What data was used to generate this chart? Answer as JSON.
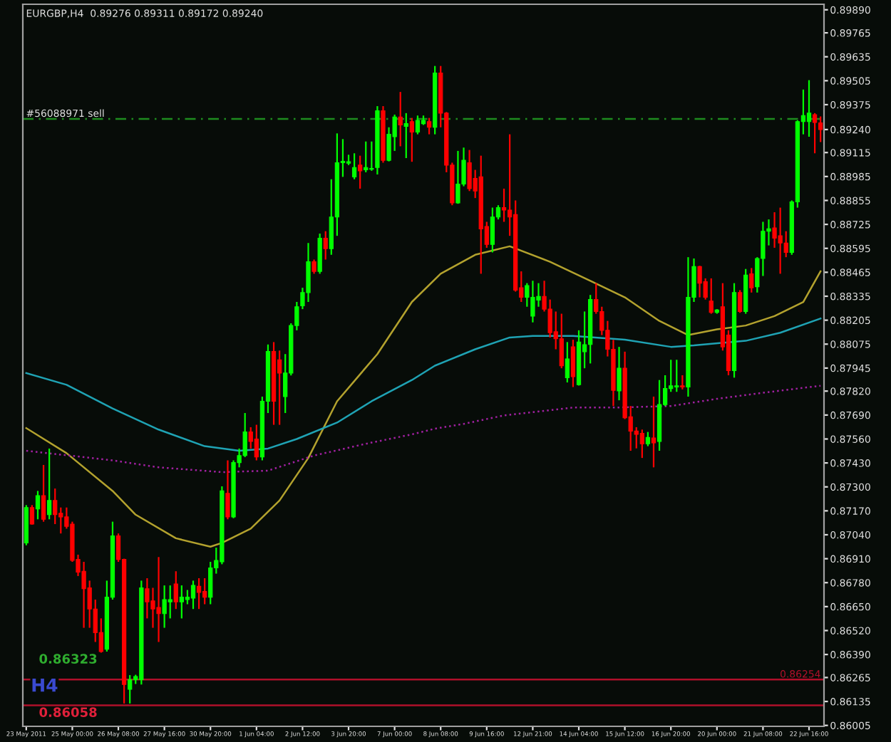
{
  "chart_data": {
    "type": "candlestick",
    "title": "EURGBP,H4  0.89276 0.89311 0.89172 0.89240",
    "categories": [
      "23 May 2011",
      null,
      null,
      null,
      null,
      null,
      null,
      null,
      "25 May 00:00",
      null,
      null,
      null,
      null,
      null,
      null,
      null,
      "26 May 08:00",
      null,
      null,
      null,
      null,
      null,
      null,
      null,
      "27 May 16:00",
      null,
      null,
      null,
      null,
      null,
      null,
      null,
      "30 May 20:00",
      null,
      null,
      null,
      null,
      null,
      null,
      null,
      "1 Jun 04:00",
      null,
      null,
      null,
      null,
      null,
      null,
      null,
      "2 Jun 12:00",
      null,
      null,
      null,
      null,
      null,
      null,
      null,
      "3 Jun 20:00",
      null,
      null,
      null,
      null,
      null,
      null,
      null,
      "7 Jun 00:00",
      null,
      null,
      null,
      null,
      null,
      null,
      null,
      "8 Jun 08:00",
      null,
      null,
      null,
      null,
      null,
      null,
      null,
      "9 Jun 16:00",
      null,
      null,
      null,
      null,
      null,
      null,
      null,
      "12 Jun 21:00",
      null,
      null,
      null,
      null,
      null,
      null,
      null,
      "14 Jun 04:00",
      null,
      null,
      null,
      null,
      null,
      null,
      null,
      "15 Jun 12:00",
      null,
      null,
      null,
      null,
      null,
      null,
      null,
      "16 Jun 20:00",
      null,
      null,
      null,
      null,
      null,
      null,
      null,
      "20 Jun 00:00",
      null,
      null,
      null,
      null,
      null,
      null,
      null,
      "21 Jun 08:00",
      null,
      null,
      null,
      null,
      null,
      null,
      null,
      "22 Jun 16:00",
      null,
      null
    ],
    "ohlc": [
      [
        0.86996,
        0.87201,
        0.86983,
        0.87188
      ],
      [
        0.87188,
        0.87201,
        0.87095,
        0.87098
      ],
      [
        0.8718,
        0.87278,
        0.87124,
        0.87252
      ],
      [
        0.87252,
        0.87419,
        0.87111,
        0.87124
      ],
      [
        0.87149,
        0.87508,
        0.87124,
        0.87226
      ],
      [
        0.87226,
        0.87291,
        0.87098,
        0.87149
      ],
      [
        0.87157,
        0.87188,
        0.87047,
        0.87137
      ],
      [
        0.87137,
        0.87188,
        0.87073,
        0.87086
      ],
      [
        0.87098,
        0.87111,
        0.86893,
        0.86901
      ],
      [
        0.86906,
        0.86932,
        0.86816,
        0.86837
      ],
      [
        0.86842,
        0.86893,
        0.86535,
        0.86747
      ],
      [
        0.86752,
        0.86791,
        0.86535,
        0.86637
      ],
      [
        0.86637,
        0.86688,
        0.86458,
        0.86509
      ],
      [
        0.86509,
        0.86586,
        0.864,
        0.86406
      ],
      [
        0.86419,
        0.86791,
        0.86406,
        0.86701
      ],
      [
        0.86701,
        0.87111,
        0.86688,
        0.87034
      ],
      [
        0.87034,
        0.87047,
        0.86893,
        0.86906
      ],
      [
        0.86906,
        0.8691,
        0.86124,
        0.86227
      ],
      [
        0.86201,
        0.86278,
        0.86124,
        0.86253
      ],
      [
        0.86253,
        0.8628,
        0.8623,
        0.8627
      ],
      [
        0.86253,
        0.86791,
        0.86227,
        0.86752
      ],
      [
        0.86747,
        0.86804,
        0.86586,
        0.86676
      ],
      [
        0.86681,
        0.86752,
        0.86535,
        0.86637
      ],
      [
        0.86645,
        0.86919,
        0.86458,
        0.86612
      ],
      [
        0.86612,
        0.86765,
        0.86535,
        0.86688
      ],
      [
        0.86676,
        0.86765,
        0.86586,
        0.86688
      ],
      [
        0.86773,
        0.86842,
        0.86637,
        0.86676
      ],
      [
        0.86676,
        0.86765,
        0.86586,
        0.86701
      ],
      [
        0.86688,
        0.8674,
        0.86663,
        0.86701
      ],
      [
        0.86696,
        0.86791,
        0.86637,
        0.86765
      ],
      [
        0.8676,
        0.86804,
        0.86637,
        0.86727
      ],
      [
        0.86732,
        0.86804,
        0.86663,
        0.86701
      ],
      [
        0.86701,
        0.86893,
        0.86663,
        0.8686
      ],
      [
        0.8686,
        0.8697,
        0.86829,
        0.86901
      ],
      [
        0.86893,
        0.87303,
        0.8688,
        0.87278
      ],
      [
        0.87265,
        0.87444,
        0.87124,
        0.87137
      ],
      [
        0.87137,
        0.87444,
        0.8713,
        0.87432
      ],
      [
        0.87432,
        0.87508,
        0.87406,
        0.8747
      ],
      [
        0.8747,
        0.87701,
        0.87462,
        0.87598
      ],
      [
        0.87598,
        0.87624,
        0.87508,
        0.87547
      ],
      [
        0.8756,
        0.87637,
        0.87444,
        0.87462
      ],
      [
        0.87462,
        0.8779,
        0.87444,
        0.87765
      ],
      [
        0.87765,
        0.88073,
        0.87701,
        0.88035
      ],
      [
        0.88035,
        0.88086,
        0.87637,
        0.87765
      ],
      [
        0.8799,
        0.8804,
        0.87637,
        0.87918
      ],
      [
        0.8779,
        0.88021,
        0.87701,
        0.87918
      ],
      [
        0.87918,
        0.88188,
        0.87905,
        0.88176
      ],
      [
        0.88176,
        0.88304,
        0.8815,
        0.88278
      ],
      [
        0.88283,
        0.88381,
        0.88265,
        0.88355
      ],
      [
        0.88355,
        0.88624,
        0.88304,
        0.88522
      ],
      [
        0.88522,
        0.88534,
        0.88457,
        0.8847
      ],
      [
        0.8847,
        0.88675,
        0.88457,
        0.8865
      ],
      [
        0.8865,
        0.88688,
        0.88534,
        0.88593
      ],
      [
        0.88593,
        0.8897,
        0.8856,
        0.88765
      ],
      [
        0.88765,
        0.89219,
        0.88663,
        0.8906
      ],
      [
        0.8906,
        0.89188,
        0.88983,
        0.89067
      ],
      [
        0.89057,
        0.89103,
        0.89047,
        0.89065
      ],
      [
        0.88983,
        0.89111,
        0.8897,
        0.89034
      ],
      [
        0.89047,
        0.89098,
        0.88919,
        0.89016
      ],
      [
        0.89021,
        0.89175,
        0.89008,
        0.89034
      ],
      [
        0.89024,
        0.89175,
        0.89016,
        0.89029
      ],
      [
        0.89034,
        0.89367,
        0.88996,
        0.89342
      ],
      [
        0.89342,
        0.89367,
        0.8906,
        0.89073
      ],
      [
        0.89073,
        0.89252,
        0.89067,
        0.89214
      ],
      [
        0.89201,
        0.89321,
        0.89124,
        0.89308
      ],
      [
        0.89308,
        0.89444,
        0.89149,
        0.89265
      ],
      [
        0.89257,
        0.89329,
        0.89085,
        0.89272
      ],
      [
        0.89283,
        0.89303,
        0.89065,
        0.89226
      ],
      [
        0.89226,
        0.89316,
        0.89214,
        0.8929
      ],
      [
        0.89272,
        0.89316,
        0.89265,
        0.8929
      ],
      [
        0.89283,
        0.89303,
        0.89214,
        0.89252
      ],
      [
        0.89252,
        0.89585,
        0.89214,
        0.89547
      ],
      [
        0.89547,
        0.89585,
        0.89252,
        0.89329
      ],
      [
        0.89329,
        0.89335,
        0.89008,
        0.89047
      ],
      [
        0.89047,
        0.8906,
        0.88829,
        0.88842
      ],
      [
        0.88842,
        0.89124,
        0.88837,
        0.88944
      ],
      [
        0.88944,
        0.89142,
        0.88932,
        0.89073
      ],
      [
        0.8906,
        0.89129,
        0.88906,
        0.88919
      ],
      [
        0.88975,
        0.89021,
        0.88868,
        0.88906
      ],
      [
        0.88983,
        0.89098,
        0.88457,
        0.88701
      ],
      [
        0.88714,
        0.88739,
        0.88598,
        0.88616
      ],
      [
        0.88616,
        0.88816,
        0.88573,
        0.88765
      ],
      [
        0.88765,
        0.88829,
        0.88752,
        0.88816
      ],
      [
        0.88816,
        0.88919,
        0.88739,
        0.88803
      ],
      [
        0.88803,
        0.89214,
        0.88663,
        0.88765
      ],
      [
        0.88778,
        0.88855,
        0.8836,
        0.88368
      ],
      [
        0.88381,
        0.8847,
        0.88304,
        0.88329
      ],
      [
        0.88329,
        0.88406,
        0.88278,
        0.88393
      ],
      [
        0.88227,
        0.88419,
        0.88193,
        0.88329
      ],
      [
        0.88314,
        0.88406,
        0.88278,
        0.88334
      ],
      [
        0.88334,
        0.88419,
        0.88252,
        0.88265
      ],
      [
        0.88265,
        0.88317,
        0.88111,
        0.88137
      ],
      [
        0.88142,
        0.88252,
        0.88047,
        0.88104
      ],
      [
        0.88104,
        0.8824,
        0.87944,
        0.87957
      ],
      [
        0.87893,
        0.88086,
        0.87867,
        0.87995
      ],
      [
        0.8806,
        0.88099,
        0.87842,
        0.87898
      ],
      [
        0.87855,
        0.8815,
        0.8785,
        0.88086
      ],
      [
        0.88034,
        0.88252,
        0.87944,
        0.88072
      ],
      [
        0.88073,
        0.88342,
        0.8797,
        0.88317
      ],
      [
        0.88317,
        0.88406,
        0.8824,
        0.88252
      ],
      [
        0.88252,
        0.88278,
        0.88124,
        0.8815
      ],
      [
        0.8815,
        0.88201,
        0.88008,
        0.88047
      ],
      [
        0.88047,
        0.88098,
        0.87739,
        0.87824
      ],
      [
        0.87821,
        0.8806,
        0.8777,
        0.87944
      ],
      [
        0.87944,
        0.88034,
        0.87668,
        0.87675
      ],
      [
        0.8768,
        0.87739,
        0.87496,
        0.87603
      ],
      [
        0.87603,
        0.87624,
        0.87509,
        0.87585
      ],
      [
        0.87591,
        0.87611,
        0.87457,
        0.87534
      ],
      [
        0.87534,
        0.87598,
        0.87521,
        0.87568
      ],
      [
        0.87565,
        0.8779,
        0.87406,
        0.87539
      ],
      [
        0.87547,
        0.8788,
        0.87496,
        0.87747
      ],
      [
        0.87747,
        0.87906,
        0.87739,
        0.87834
      ],
      [
        0.87834,
        0.8799,
        0.87816,
        0.87849
      ],
      [
        0.87842,
        0.8799,
        0.87816,
        0.87849
      ],
      [
        0.87849,
        0.87906,
        0.87829,
        0.87842
      ],
      [
        0.87842,
        0.88547,
        0.8779,
        0.88329
      ],
      [
        0.88329,
        0.8854,
        0.88304,
        0.88496
      ],
      [
        0.88496,
        0.885,
        0.88329,
        0.88406
      ],
      [
        0.88414,
        0.88432,
        0.88317,
        0.88329
      ],
      [
        0.88309,
        0.88432,
        0.8824,
        0.88247
      ],
      [
        0.88247,
        0.88265,
        0.8824,
        0.8826
      ],
      [
        0.88278,
        0.88406,
        0.8804,
        0.8806
      ],
      [
        0.88124,
        0.8815,
        0.87906,
        0.87931
      ],
      [
        0.87931,
        0.88406,
        0.87893,
        0.88355
      ],
      [
        0.88355,
        0.88368,
        0.88245,
        0.88252
      ],
      [
        0.88252,
        0.88483,
        0.8824,
        0.8845
      ],
      [
        0.88457,
        0.88488,
        0.88355,
        0.88381
      ],
      [
        0.88386,
        0.88547,
        0.88355,
        0.8854
      ],
      [
        0.8854,
        0.88739,
        0.88445,
        0.88688
      ],
      [
        0.88688,
        0.88752,
        0.88611,
        0.88701
      ],
      [
        0.88706,
        0.88791,
        0.88598,
        0.8865
      ],
      [
        0.88663,
        0.88816,
        0.88457,
        0.88624
      ],
      [
        0.88624,
        0.88688,
        0.88547,
        0.88573
      ],
      [
        0.88573,
        0.88855,
        0.8856,
        0.88847
      ],
      [
        0.88847,
        0.8929,
        0.88816,
        0.89283
      ],
      [
        0.89283,
        0.89457,
        0.89214,
        0.89316
      ],
      [
        0.89283,
        0.89508,
        0.89201,
        0.89329
      ],
      [
        0.89321,
        0.89329,
        0.89111,
        0.89278
      ],
      [
        0.89276,
        0.89311,
        0.89172,
        0.8924
      ]
    ],
    "colors": [
      "#00ff00",
      "#ff0000",
      "#00ff00",
      "#ff0000",
      "#00ff00",
      "#ff0000",
      "#ff0000",
      "#ff0000",
      "#ff0000",
      "#ff0000",
      "#ff0000",
      "#ff0000",
      "#ff0000",
      "#ff0000",
      "#00ff00",
      "#00ff00",
      "#ff0000",
      "#ff0000",
      "#00ff00",
      "#00ff00",
      "#00ff00",
      "#ff0000",
      "#ff0000",
      "#ff0000",
      "#00ff00",
      "#00ff00",
      "#ff0000",
      "#00ff00",
      "#00ff00",
      "#00ff00",
      "#ff0000",
      "#ff0000",
      "#00ff00",
      "#00ff00",
      "#00ff00",
      "#ff0000",
      "#00ff00",
      "#00ff00",
      "#00ff00",
      "#ff0000",
      "#ff0000",
      "#00ff00",
      "#00ff00",
      "#ff0000",
      "#ff0000",
      "#00ff00",
      "#00ff00",
      "#00ff00",
      "#00ff00",
      "#00ff00",
      "#ff0000",
      "#00ff00",
      "#ff0000",
      "#00ff00",
      "#00ff00",
      "#00ff00",
      "#00ff00",
      "#00ff00",
      "#ff0000",
      "#00ff00",
      "#00ff00",
      "#00ff00",
      "#ff0000",
      "#00ff00",
      "#00ff00",
      "#ff0000",
      "#00ff00",
      "#ff0000",
      "#00ff00",
      "#00ff00",
      "#ff0000",
      "#00ff00",
      "#ff0000",
      "#ff0000",
      "#ff0000",
      "#00ff00",
      "#00ff00",
      "#ff0000",
      "#ff0000",
      "#ff0000",
      "#ff0000",
      "#00ff00",
      "#00ff00",
      "#ff0000",
      "#ff0000",
      "#ff0000",
      "#ff0000",
      "#00ff00",
      "#00ff00",
      "#00ff00",
      "#ff0000",
      "#ff0000",
      "#ff0000",
      "#ff0000",
      "#00ff00",
      "#ff0000",
      "#00ff00",
      "#00ff00",
      "#00ff00",
      "#ff0000",
      "#ff0000",
      "#ff0000",
      "#ff0000",
      "#00ff00",
      "#ff0000",
      "#ff0000",
      "#ff0000",
      "#ff0000",
      "#00ff00",
      "#ff0000",
      "#00ff00",
      "#00ff00",
      "#00ff00",
      "#00ff00",
      "#ff0000",
      "#00ff00",
      "#00ff00",
      "#ff0000",
      "#ff0000",
      "#ff0000",
      "#00ff00",
      "#ff0000",
      "#ff0000",
      "#00ff00",
      "#ff0000",
      "#00ff00",
      "#ff0000",
      "#00ff00",
      "#00ff00",
      "#00ff00",
      "#ff0000",
      "#ff0000",
      "#ff0000",
      "#00ff00",
      "#00ff00",
      "#00ff00",
      "#00ff00",
      "#ff0000",
      "#ff0000"
    ],
    "series": [
      {
        "type": "line",
        "color": "#b3a22e",
        "line_style": "solid",
        "values": [
          0.87619,
          null,
          null,
          null,
          null,
          null,
          null,
          0.87483,
          null,
          null,
          null,
          null,
          null,
          null,
          null,
          0.87278,
          null,
          null,
          null,
          0.87149,
          null,
          null,
          null,
          null,
          null,
          null,
          0.87021,
          null,
          null,
          null,
          null,
          null,
          0.86975,
          null,
          0.86996,
          null,
          null,
          null,
          null,
          0.87073,
          null,
          null,
          null,
          null,
          0.87226,
          null,
          null,
          null,
          null,
          0.87457,
          null,
          null,
          null,
          null,
          0.87765,
          null,
          null,
          null,
          null,
          null,
          null,
          0.88021,
          null,
          null,
          null,
          null,
          null,
          0.88304,
          null,
          null,
          null,
          null,
          0.88457,
          null,
          null,
          null,
          null,
          null,
          0.8856,
          null,
          null,
          null,
          null,
          null,
          0.88606,
          null,
          null,
          null,
          null,
          null,
          null,
          0.88522,
          null,
          null,
          null,
          null,
          null,
          null,
          0.88419,
          null,
          null,
          null,
          null,
          null,
          0.88329,
          null,
          null,
          null,
          null,
          null,
          0.88201,
          null,
          null,
          null,
          null,
          0.88124,
          null,
          null,
          null,
          null,
          0.88155,
          null,
          null,
          null,
          null,
          0.88176,
          null,
          null,
          null,
          null,
          0.88227,
          null,
          null,
          null,
          null,
          0.88304,
          null,
          null,
          0.8847
        ]
      },
      {
        "type": "line",
        "color": "#1fa3b4",
        "line_style": "solid",
        "values": [
          0.87918,
          null,
          null,
          null,
          null,
          null,
          null,
          0.87854,
          null,
          null,
          null,
          null,
          null,
          null,
          null,
          0.87726,
          null,
          null,
          null,
          null,
          null,
          null,
          null,
          0.87611,
          null,
          null,
          null,
          null,
          null,
          null,
          null,
          0.87521,
          null,
          null,
          null,
          null,
          null,
          0.87496,
          null,
          null,
          null,
          null,
          0.87508,
          null,
          null,
          null,
          null,
          0.8756,
          null,
          null,
          null,
          null,
          null,
          null,
          0.87649,
          null,
          null,
          null,
          null,
          null,
          0.87765,
          null,
          null,
          null,
          null,
          null,
          null,
          0.8788,
          null,
          null,
          null,
          0.87958,
          null,
          null,
          null,
          null,
          null,
          null,
          0.88047,
          null,
          null,
          null,
          null,
          null,
          0.88111,
          null,
          null,
          null,
          0.88119,
          null,
          null,
          null,
          null,
          null,
          null,
          0.88119,
          null,
          null,
          null,
          null,
          null,
          null,
          null,
          null,
          0.88099,
          null,
          null,
          null,
          null,
          null,
          null,
          null,
          0.8806,
          null,
          null,
          null,
          0.88068,
          null,
          null,
          null,
          null,
          null,
          null,
          null,
          null,
          0.88093,
          null,
          null,
          null,
          null,
          null,
          0.88137,
          null,
          null,
          null,
          null,
          null,
          null,
          0.88214
        ]
      },
      {
        "type": "line",
        "color": "#a020a0",
        "line_style": "dotted",
        "values": [
          0.87496,
          null,
          null,
          null,
          null,
          null,
          null,
          null,
          null,
          null,
          null,
          null,
          null,
          null,
          null,
          0.87444,
          null,
          null,
          null,
          null,
          null,
          null,
          null,
          0.87406,
          null,
          null,
          null,
          null,
          null,
          null,
          null,
          null,
          null,
          null,
          0.8738,
          null,
          null,
          null,
          null,
          null,
          null,
          null,
          0.87388,
          null,
          null,
          null,
          null,
          null,
          null,
          null,
          0.8747,
          null,
          null,
          null,
          null,
          null,
          null,
          null,
          null,
          0.87534,
          null,
          null,
          null,
          null,
          null,
          null,
          null,
          0.87585,
          null,
          null,
          null,
          0.87616,
          null,
          null,
          null,
          null,
          0.87642,
          null,
          null,
          null,
          null,
          null,
          null,
          0.87688,
          null,
          null,
          null,
          null,
          null,
          null,
          null,
          null,
          null,
          null,
          null,
          0.87731,
          null,
          null,
          null,
          null,
          null,
          null,
          null,
          0.87731,
          null,
          null,
          null,
          null,
          null,
          null,
          null,
          null,
          0.87739,
          null,
          null,
          null,
          null,
          null,
          null,
          null,
          0.87778,
          null,
          null,
          null,
          null,
          null,
          null,
          null,
          0.87811,
          null,
          null,
          null,
          null,
          null,
          null,
          null,
          null,
          null,
          0.87849
        ]
      }
    ],
    "ylim": [
      0.86,
      0.8992
    ],
    "yticks": [
      {
        "value": 0.8989,
        "label": "0.89890"
      },
      {
        "value": 0.89765,
        "label": "0.89765"
      },
      {
        "value": 0.89635,
        "label": "0.89635"
      },
      {
        "value": 0.89505,
        "label": "0.89505"
      },
      {
        "value": 0.89375,
        "label": "0.89375"
      },
      {
        "value": 0.8924,
        "label": "0.89240"
      },
      {
        "value": 0.89115,
        "label": "0.89115"
      },
      {
        "value": 0.88985,
        "label": "0.88985"
      },
      {
        "value": 0.88855,
        "label": "0.88855"
      },
      {
        "value": 0.88725,
        "label": "0.88725"
      },
      {
        "value": 0.88595,
        "label": "0.88595"
      },
      {
        "value": 0.88465,
        "label": "0.88465"
      },
      {
        "value": 0.88335,
        "label": "0.88335"
      },
      {
        "value": 0.88205,
        "label": "0.88205"
      },
      {
        "value": 0.88075,
        "label": "0.88075"
      },
      {
        "value": 0.87945,
        "label": "0.87945"
      },
      {
        "value": 0.8782,
        "label": "0.87820"
      },
      {
        "value": 0.8769,
        "label": "0.87690"
      },
      {
        "value": 0.8756,
        "label": "0.87560"
      },
      {
        "value": 0.8743,
        "label": "0.87430"
      },
      {
        "value": 0.873,
        "label": "0.87300"
      },
      {
        "value": 0.8717,
        "label": "0.87170"
      },
      {
        "value": 0.8704,
        "label": "0.87040"
      },
      {
        "value": 0.8691,
        "label": "0.86910"
      },
      {
        "value": 0.8678,
        "label": "0.86780"
      },
      {
        "value": 0.8665,
        "label": "0.86650"
      },
      {
        "value": 0.8652,
        "label": "0.86520"
      },
      {
        "value": 0.8639,
        "label": "0.86390"
      },
      {
        "value": 0.86265,
        "label": "0.86265"
      },
      {
        "value": 0.86135,
        "label": "0.86135"
      },
      {
        "value": 0.86005,
        "label": "0.86005"
      }
    ],
    "ref_lines": [
      {
        "axis": "y",
        "value": 0.89298,
        "label": "#56088971 sell",
        "color": "#1e8c1e",
        "line_style": "dashed"
      },
      {
        "axis": "y",
        "value": 0.86254,
        "label": "0.86254",
        "color": "#b0102a",
        "line_style": "solid"
      },
      {
        "axis": "y",
        "value": 0.86114,
        "color": "#b0102a",
        "line_style": "solid"
      }
    ],
    "annotations": [
      "0.86323",
      "H4",
      "0.86058"
    ],
    "grid": false,
    "legend": false
  }
}
